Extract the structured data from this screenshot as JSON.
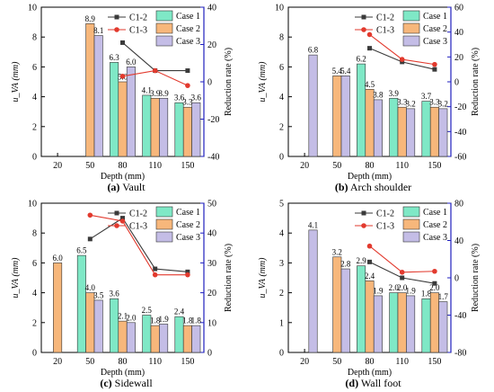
{
  "chart_data": [
    {
      "type": "bar",
      "panel_id": "a",
      "caption_label": "(a)",
      "caption_text": "Vault",
      "xlabel": "Depth (mm)",
      "ylabel": "u_VA (mm)",
      "y2label": "Reduction rate (%)",
      "categories": [
        "20",
        "50",
        "80",
        "110",
        "150"
      ],
      "ylim": [
        0,
        10
      ],
      "yticks": [
        0,
        2,
        4,
        6,
        8,
        10
      ],
      "y2lim": [
        -40,
        40
      ],
      "y2ticks": [
        -40,
        -20,
        0,
        20,
        40
      ],
      "series": [
        {
          "name": "Case 1",
          "color": "#7fe8c6",
          "values": [
            null,
            null,
            6.3,
            4.1,
            3.6
          ],
          "labels": [
            "",
            "",
            "6.3",
            "4.1",
            "3.6"
          ]
        },
        {
          "name": "Case 2",
          "color": "#f7b77b",
          "values": [
            null,
            8.9,
            5.0,
            3.9,
            3.3
          ],
          "labels": [
            "",
            "8.9",
            "5.0",
            "3.9",
            "3.3"
          ]
        },
        {
          "name": "Case 3",
          "color": "#c4bde6",
          "values": [
            null,
            8.1,
            6.0,
            3.9,
            3.6
          ],
          "labels": [
            "",
            "8.1",
            "6.0",
            "3.9",
            "3.6"
          ]
        }
      ],
      "lines": [
        {
          "name": "C1-2",
          "color": "#3a3a3a",
          "marker": "square",
          "values": [
            null,
            null,
            21,
            6,
            6
          ]
        },
        {
          "name": "C1-3",
          "color": "#e23a2e",
          "marker": "circle",
          "values": [
            null,
            null,
            3,
            6,
            -2
          ]
        }
      ]
    },
    {
      "type": "bar",
      "panel_id": "b",
      "caption_label": "(b)",
      "caption_text": "Arch shoulder",
      "xlabel": "Depth (mm)",
      "ylabel": "u_VA (mm)",
      "y2label": "Reduction rate (%)",
      "categories": [
        "20",
        "50",
        "80",
        "110",
        "150"
      ],
      "ylim": [
        0,
        10
      ],
      "yticks": [
        0,
        2,
        4,
        6,
        8,
        10
      ],
      "y2lim": [
        -60,
        60
      ],
      "y2ticks": [
        -60,
        -40,
        -20,
        0,
        20,
        40,
        60
      ],
      "series": [
        {
          "name": "Case 1",
          "color": "#7fe8c6",
          "values": [
            null,
            null,
            6.2,
            3.9,
            3.7
          ],
          "labels": [
            "",
            "",
            "6.2",
            "3.9",
            "3.7"
          ]
        },
        {
          "name": "Case 2",
          "color": "#f7b77b",
          "values": [
            null,
            5.4,
            4.5,
            3.3,
            3.3
          ],
          "labels": [
            "",
            "5.4",
            "4.5",
            "3.3",
            "3.3"
          ]
        },
        {
          "name": "Case 3",
          "color": "#c4bde6",
          "values": [
            6.8,
            5.4,
            3.8,
            3.2,
            3.2
          ],
          "labels": [
            "6.8",
            "5.4",
            "3.8",
            "3.2",
            "3.2"
          ]
        }
      ],
      "lines": [
        {
          "name": "C1-2",
          "color": "#3a3a3a",
          "marker": "square",
          "values": [
            null,
            null,
            27,
            16,
            10
          ]
        },
        {
          "name": "C1-3",
          "color": "#e23a2e",
          "marker": "circle",
          "values": [
            null,
            null,
            38,
            18,
            14
          ]
        }
      ]
    },
    {
      "type": "bar",
      "panel_id": "c",
      "caption_label": "(c)",
      "caption_text": "Sidewall",
      "xlabel": "Depth (mm)",
      "ylabel": "u_VA (mm)",
      "y2label": "Reduction rate (%)",
      "categories": [
        "20",
        "50",
        "80",
        "110",
        "150"
      ],
      "ylim": [
        0,
        10
      ],
      "yticks": [
        0,
        2,
        4,
        6,
        8,
        10
      ],
      "y2lim": [
        0,
        50
      ],
      "y2ticks": [
        0,
        10,
        20,
        30,
        40,
        50
      ],
      "series": [
        {
          "name": "Case 1",
          "color": "#7fe8c6",
          "values": [
            null,
            6.5,
            3.6,
            2.5,
            2.4
          ],
          "labels": [
            "",
            "6.5",
            "3.6",
            "2.5",
            "2.4"
          ]
        },
        {
          "name": "Case 2",
          "color": "#f7b77b",
          "values": [
            6.0,
            4.0,
            2.1,
            1.8,
            1.8
          ],
          "labels": [
            "6.0",
            "4.0",
            "2.1",
            "1.8",
            "1.8"
          ]
        },
        {
          "name": "Case 3",
          "color": "#c4bde6",
          "values": [
            null,
            3.5,
            2.0,
            1.9,
            1.8
          ],
          "labels": [
            "",
            "3.5",
            "2.0",
            "1.9",
            "1.8"
          ]
        }
      ],
      "lines": [
        {
          "name": "C1-2",
          "color": "#3a3a3a",
          "marker": "square",
          "values": [
            null,
            38,
            45,
            28,
            27
          ]
        },
        {
          "name": "C1-3",
          "color": "#e23a2e",
          "marker": "circle",
          "values": [
            null,
            46,
            44,
            26,
            26
          ]
        }
      ]
    },
    {
      "type": "bar",
      "panel_id": "d",
      "caption_label": "(d)",
      "caption_text": "Wall foot",
      "xlabel": "Depth (mm)",
      "ylabel": "u_VA (mm)",
      "y2label": "Reduction rate (%)",
      "categories": [
        "20",
        "50",
        "80",
        "110",
        "150"
      ],
      "ylim": [
        0,
        5
      ],
      "yticks": [
        0,
        1,
        2,
        3,
        4,
        5
      ],
      "y2lim": [
        -80,
        80
      ],
      "y2ticks": [
        -80,
        -40,
        0,
        40,
        80
      ],
      "series": [
        {
          "name": "Case 1",
          "color": "#7fe8c6",
          "values": [
            null,
            null,
            2.9,
            2.0,
            1.8
          ],
          "labels": [
            "",
            "",
            "2.9",
            "2.0",
            "1.8"
          ]
        },
        {
          "name": "Case 2",
          "color": "#f7b77b",
          "values": [
            null,
            3.2,
            2.4,
            2.0,
            2.0
          ],
          "labels": [
            "",
            "3.2",
            "2.4",
            "2.0",
            "2.0"
          ]
        },
        {
          "name": "Case 3",
          "color": "#c4bde6",
          "values": [
            4.1,
            2.8,
            1.9,
            1.9,
            1.7
          ],
          "labels": [
            "4.1",
            "2.8",
            "1.9",
            "1.9",
            "1.7"
          ]
        }
      ],
      "lines": [
        {
          "name": "C1-2",
          "color": "#3a3a3a",
          "marker": "square",
          "values": [
            null,
            null,
            17,
            0,
            -6
          ]
        },
        {
          "name": "C1-3",
          "color": "#e23a2e",
          "marker": "circle",
          "values": [
            null,
            null,
            34,
            6,
            7
          ]
        }
      ]
    }
  ]
}
